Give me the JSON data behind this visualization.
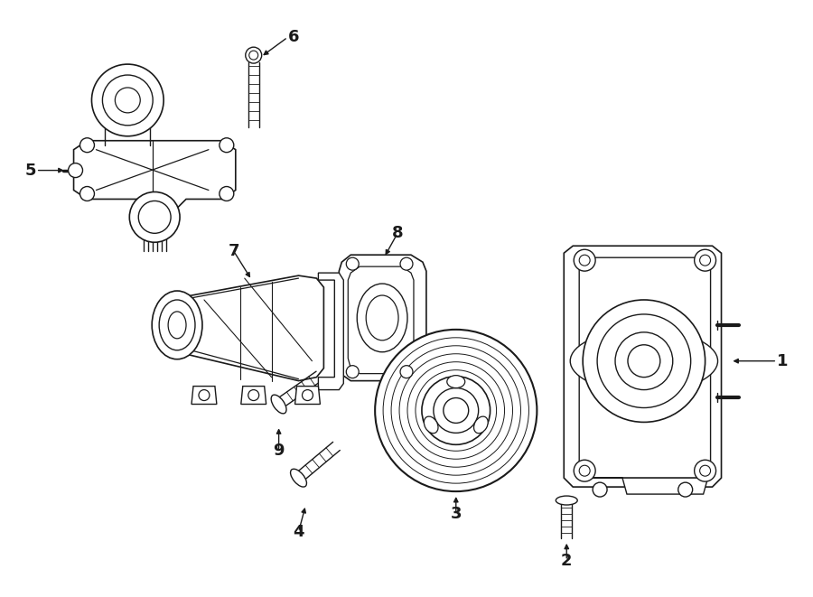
{
  "bg_color": "#ffffff",
  "line_color": "#1a1a1a",
  "lw": 1.0,
  "fig_width": 9.0,
  "fig_height": 6.61,
  "dpi": 100
}
